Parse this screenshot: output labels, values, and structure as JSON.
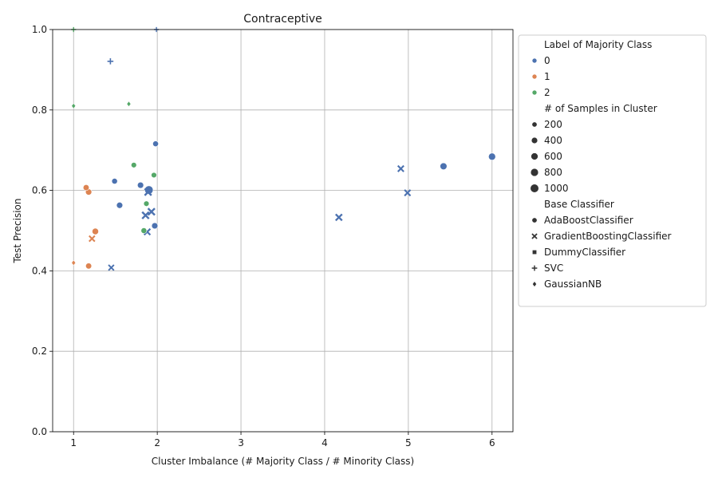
{
  "chart_data": {
    "type": "scatter",
    "title": "Contraceptive",
    "xlabel": "Cluster Imbalance (# Majority Class / # Minority Class)",
    "ylabel": "Test Precision",
    "xlim": [
      0.75,
      6.25
    ],
    "ylim": [
      0.0,
      1.0
    ],
    "xticks": [
      1,
      2,
      3,
      4,
      5,
      6
    ],
    "yticks": [
      0.0,
      0.2,
      0.4,
      0.6,
      0.8,
      1.0
    ],
    "xtick_labels": [
      "1",
      "2",
      "3",
      "4",
      "5",
      "6"
    ],
    "ytick_labels": [
      "0.0",
      "0.2",
      "0.4",
      "0.6",
      "0.8",
      "1.0"
    ],
    "grid": true,
    "legend_position": "outside-right",
    "hue": {
      "title": "Label of Majority Class",
      "levels": [
        {
          "label": "0",
          "color": "#4c72b0"
        },
        {
          "label": "1",
          "color": "#dd8452"
        },
        {
          "label": "2",
          "color": "#55a868"
        }
      ]
    },
    "size": {
      "title": "# of Samples in Cluster",
      "levels": [
        {
          "label": "200",
          "value": 200
        },
        {
          "label": "400",
          "value": 400
        },
        {
          "label": "600",
          "value": 600
        },
        {
          "label": "800",
          "value": 800
        },
        {
          "label": "1000",
          "value": 1000
        }
      ]
    },
    "style": {
      "title": "Base Classifier",
      "levels": [
        {
          "label": "AdaBoostClassifier",
          "marker": "circle"
        },
        {
          "label": "GradientBoostingClassifier",
          "marker": "x"
        },
        {
          "label": "DummyClassifier",
          "marker": "square"
        },
        {
          "label": "SVC",
          "marker": "plus"
        },
        {
          "label": "GaussianNB",
          "marker": "diamond"
        }
      ]
    },
    "points": [
      {
        "x": 1.98,
        "y": 0.716,
        "label": "0",
        "samples": 300,
        "clf": "AdaBoostClassifier"
      },
      {
        "x": 1.49,
        "y": 0.623,
        "label": "0",
        "samples": 300,
        "clf": "AdaBoostClassifier"
      },
      {
        "x": 1.8,
        "y": 0.613,
        "label": "0",
        "samples": 400,
        "clf": "AdaBoostClassifier"
      },
      {
        "x": 1.9,
        "y": 0.601,
        "label": "0",
        "samples": 1000,
        "clf": "AdaBoostClassifier"
      },
      {
        "x": 1.55,
        "y": 0.563,
        "label": "0",
        "samples": 400,
        "clf": "AdaBoostClassifier"
      },
      {
        "x": 1.97,
        "y": 0.512,
        "label": "0",
        "samples": 400,
        "clf": "AdaBoostClassifier"
      },
      {
        "x": 5.42,
        "y": 0.66,
        "label": "0",
        "samples": 550,
        "clf": "AdaBoostClassifier"
      },
      {
        "x": 6.0,
        "y": 0.684,
        "label": "0",
        "samples": 600,
        "clf": "AdaBoostClassifier"
      },
      {
        "x": 1.15,
        "y": 0.607,
        "label": "1",
        "samples": 350,
        "clf": "AdaBoostClassifier"
      },
      {
        "x": 1.18,
        "y": 0.596,
        "label": "1",
        "samples": 400,
        "clf": "AdaBoostClassifier"
      },
      {
        "x": 1.26,
        "y": 0.498,
        "label": "1",
        "samples": 450,
        "clf": "AdaBoostClassifier"
      },
      {
        "x": 1.18,
        "y": 0.412,
        "label": "1",
        "samples": 350,
        "clf": "AdaBoostClassifier"
      },
      {
        "x": 1.72,
        "y": 0.663,
        "label": "2",
        "samples": 250,
        "clf": "AdaBoostClassifier"
      },
      {
        "x": 1.96,
        "y": 0.638,
        "label": "2",
        "samples": 250,
        "clf": "AdaBoostClassifier"
      },
      {
        "x": 1.87,
        "y": 0.567,
        "label": "2",
        "samples": 250,
        "clf": "AdaBoostClassifier"
      },
      {
        "x": 1.84,
        "y": 0.5,
        "label": "2",
        "samples": 300,
        "clf": "AdaBoostClassifier"
      },
      {
        "x": 4.91,
        "y": 0.654,
        "label": "0",
        "samples": 400,
        "clf": "GradientBoostingClassifier"
      },
      {
        "x": 4.99,
        "y": 0.594,
        "label": "0",
        "samples": 400,
        "clf": "GradientBoostingClassifier"
      },
      {
        "x": 4.17,
        "y": 0.533,
        "label": "0",
        "samples": 500,
        "clf": "GradientBoostingClassifier"
      },
      {
        "x": 1.89,
        "y": 0.596,
        "label": "0",
        "samples": 600,
        "clf": "GradientBoostingClassifier"
      },
      {
        "x": 1.93,
        "y": 0.547,
        "label": "0",
        "samples": 600,
        "clf": "GradientBoostingClassifier"
      },
      {
        "x": 1.86,
        "y": 0.538,
        "label": "0",
        "samples": 600,
        "clf": "GradientBoostingClassifier"
      },
      {
        "x": 1.88,
        "y": 0.497,
        "label": "0",
        "samples": 450,
        "clf": "GradientBoostingClassifier"
      },
      {
        "x": 1.45,
        "y": 0.408,
        "label": "0",
        "samples": 300,
        "clf": "GradientBoostingClassifier"
      },
      {
        "x": 1.22,
        "y": 0.48,
        "label": "1",
        "samples": 350,
        "clf": "GradientBoostingClassifier"
      },
      {
        "x": 1.44,
        "y": 0.921,
        "label": "0",
        "samples": 300,
        "clf": "SVC"
      },
      {
        "x": 1.0,
        "y": 1.0,
        "label": "2",
        "samples": 150,
        "clf": "SVC"
      },
      {
        "x": 1.99,
        "y": 1.0,
        "label": "0",
        "samples": 150,
        "clf": "SVC"
      },
      {
        "x": 1.0,
        "y": 0.81,
        "label": "2",
        "samples": 180,
        "clf": "GaussianNB"
      },
      {
        "x": 1.66,
        "y": 0.815,
        "label": "2",
        "samples": 180,
        "clf": "GaussianNB"
      },
      {
        "x": 1.0,
        "y": 0.42,
        "label": "1",
        "samples": 180,
        "clf": "GaussianNB"
      }
    ]
  }
}
